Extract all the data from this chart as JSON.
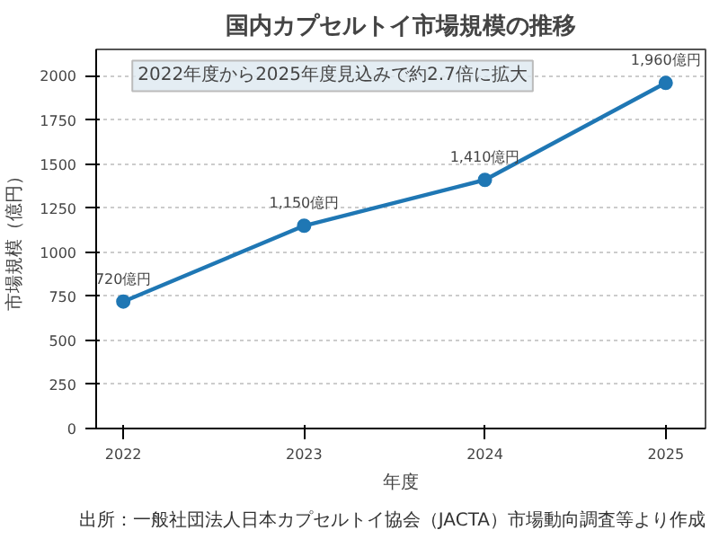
{
  "chart_data": {
    "type": "line",
    "title": "国内カプセルトイ市場規模の推移",
    "xlabel": "年度",
    "ylabel": "市場規模（億円）",
    "x": [
      2022,
      2023,
      2024,
      2025
    ],
    "series": [
      {
        "color": "#1f77b4",
        "values": [
          720,
          1150,
          1410,
          1960
        ],
        "value_labels": [
          "720億円",
          "1,150億円",
          "1,410億円",
          "1,960億円"
        ]
      }
    ],
    "xlim": [
      2021.85,
      2025.22
    ],
    "xticks": [
      2022,
      2023,
      2024,
      2025
    ],
    "ylim": [
      0,
      2150
    ],
    "yticks": [
      0,
      250,
      500,
      750,
      1000,
      1250,
      1500,
      1750,
      2000
    ],
    "grid": "y",
    "marker": "circle",
    "line_style": "solid",
    "annotations": [
      "2022年度から2025年度見込みで約2.7倍に拡大",
      "出所：一般社団法人日本カプセルトイ協会（JACTA）市場動向調査等より作成"
    ]
  }
}
